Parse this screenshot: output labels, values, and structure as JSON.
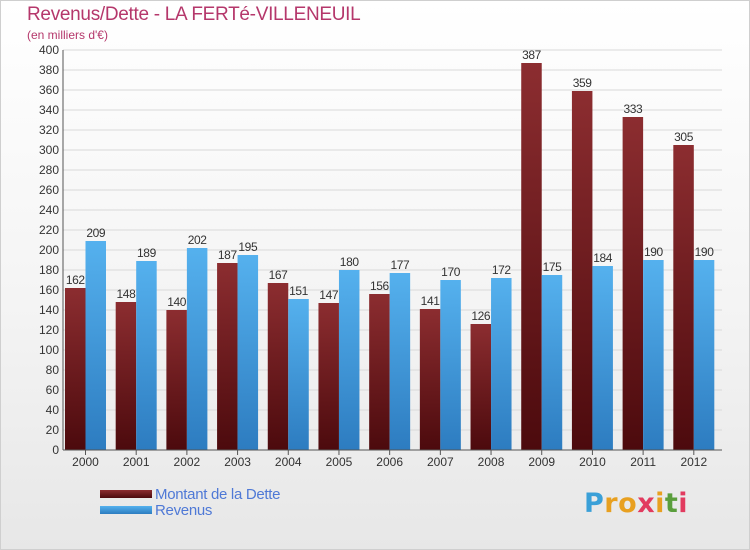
{
  "title": "Revenus/Dette - LA FERTé-VILLENEUIL",
  "subtitle": "(en milliers d'€)",
  "logo": {
    "letters": [
      "P",
      "r",
      "o",
      "x",
      "i",
      "t",
      "i"
    ],
    "colors": [
      "#3aa0d8",
      "#e8a020",
      "#e8a020",
      "#e23b5f",
      "#e8a020",
      "#5a9e3c",
      "#e23b5f"
    ]
  },
  "chart_data": {
    "type": "bar",
    "categories": [
      "2000",
      "2001",
      "2002",
      "2003",
      "2004",
      "2005",
      "2006",
      "2007",
      "2008",
      "2009",
      "2010",
      "2011",
      "2012"
    ],
    "series": [
      {
        "name": "Montant de la Dette",
        "values": [
          162,
          148,
          140,
          187,
          167,
          147,
          156,
          141,
          126,
          387,
          359,
          333,
          305
        ],
        "color": "#7a1e22"
      },
      {
        "name": "Revenus",
        "values": [
          209,
          189,
          202,
          195,
          151,
          180,
          177,
          170,
          172,
          175,
          184,
          190,
          190
        ],
        "color": "#4aa3e6"
      }
    ],
    "ylim": [
      0,
      400
    ],
    "yticks": [
      0,
      20,
      40,
      60,
      80,
      100,
      120,
      140,
      160,
      180,
      200,
      220,
      240,
      260,
      280,
      300,
      320,
      340,
      360,
      380,
      400
    ],
    "grid": true,
    "legend": "bottom-left"
  }
}
